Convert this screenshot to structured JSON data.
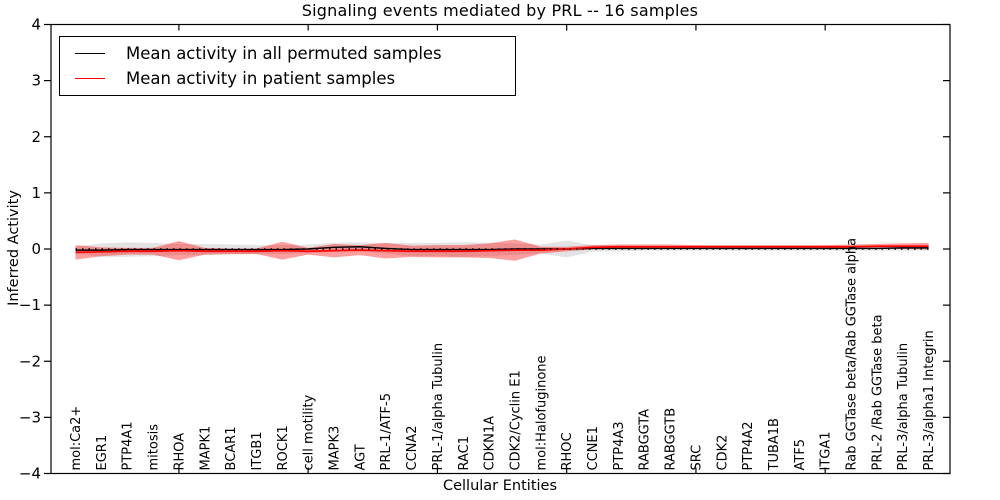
{
  "chart_data": {
    "type": "line",
    "title": "Signaling events mediated by PRL -- 16 samples",
    "xlabel": "Cellular Entities",
    "ylabel": "Inferred Activity",
    "ylim": [
      -4,
      4
    ],
    "yticks": [
      4,
      3,
      2,
      1,
      0,
      -1,
      -2,
      -3,
      -4
    ],
    "ytick_labels": [
      "4",
      "3",
      "2",
      "1",
      "0",
      "−1",
      "−2",
      "−3",
      "−4"
    ],
    "x_major_tick_every": 5,
    "grid": false,
    "legend_position": "upper left",
    "zero_reference_line": {
      "value": 0,
      "style": "dotted",
      "color": "#000000"
    },
    "categories": [
      "mol:Ca2+",
      "EGR1",
      "PTP4A1",
      "mitosis",
      "RHOA",
      "MAPK1",
      "BCAR1",
      "ITGB1",
      "ROCK1",
      "cell motility",
      "MAPK3",
      "AGT",
      "PRL-1/ATF-5",
      "CCNA2",
      "PRL-1/alpha Tubulin",
      "RAC1",
      "CDKN1A",
      "CDK2/Cyclin E1",
      "mol:Halofuginone",
      "RHOC",
      "CCNE1",
      "PTP4A3",
      "RABGGTA",
      "RABGGTB",
      "SRC",
      "CDK2",
      "PTP4A2",
      "TUBA1B",
      "ATF5",
      "ITGA1",
      "Rab GGTase beta/Rab GGTase alpha",
      "PRL-2 /Rab GGTase beta",
      "PRL-3/alpha Tubulin",
      "PRL-3/alpha1 Integrin"
    ],
    "series": [
      {
        "name": "Mean activity in all permuted samples",
        "color": "#000000",
        "band_color": "#808080",
        "band_opacity": 0.22,
        "line_width": 1.4,
        "values": [
          -0.02,
          -0.02,
          -0.01,
          -0.01,
          -0.01,
          -0.01,
          -0.01,
          -0.01,
          -0.01,
          0,
          0.03,
          0.04,
          0.01,
          -0.01,
          -0.01,
          -0.01,
          -0.01,
          0,
          0,
          0,
          0.01,
          0.01,
          0.01,
          0.01,
          0.01,
          0.01,
          0.01,
          0.01,
          0.01,
          0.01,
          0.01,
          0.01,
          0.02,
          0.02
        ],
        "band_halfwidth": [
          0.06,
          0.12,
          0.13,
          0.12,
          0.1,
          0.1,
          0.09,
          0.08,
          0.08,
          0.08,
          0.08,
          0.08,
          0.09,
          0.12,
          0.12,
          0.13,
          0.12,
          0.1,
          0.08,
          0.15,
          0.06,
          0.05,
          0.04,
          0.04,
          0.04,
          0.04,
          0.04,
          0.04,
          0.04,
          0.04,
          0.04,
          0.04,
          0.05,
          0.05
        ]
      },
      {
        "name": "Mean activity in patient samples",
        "color": "#ff0000",
        "band_color": "#ff0000",
        "band_opacity": 0.38,
        "line_width": 1.7,
        "values": [
          -0.06,
          -0.05,
          -0.04,
          -0.04,
          -0.03,
          -0.04,
          -0.04,
          -0.04,
          -0.03,
          -0.04,
          -0.03,
          -0.02,
          -0.03,
          -0.04,
          -0.04,
          -0.04,
          -0.03,
          -0.02,
          -0.02,
          0,
          0.03,
          0.04,
          0.04,
          0.04,
          0.04,
          0.04,
          0.04,
          0.04,
          0.04,
          0.04,
          0.04,
          0.05,
          0.05,
          0.05
        ],
        "band_halfwidth": [
          0.13,
          0.08,
          0.06,
          0.06,
          0.17,
          0.06,
          0.05,
          0.05,
          0.16,
          0.06,
          0.12,
          0.09,
          0.14,
          0.1,
          0.11,
          0.11,
          0.13,
          0.19,
          0.06,
          0.04,
          0.04,
          0.04,
          0.04,
          0.04,
          0.03,
          0.03,
          0.03,
          0.03,
          0.03,
          0.03,
          0.04,
          0.04,
          0.05,
          0.06
        ]
      }
    ]
  }
}
